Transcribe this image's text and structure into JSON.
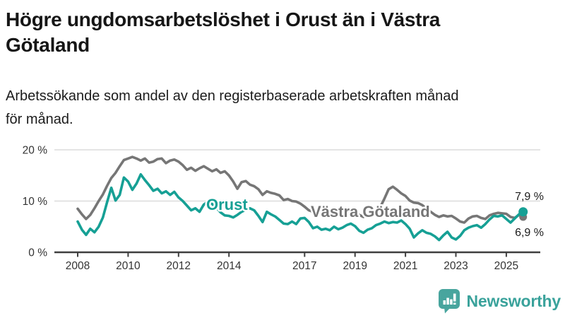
{
  "header": {
    "title_lines": [
      "Högre ungdomsarbetslöshet i Orust än i Västra",
      "Götaland"
    ],
    "subtitle_lines": [
      "Arbetssökande som andel av den registerbaserade arbetskraften månad",
      "för månad."
    ]
  },
  "chart_data": {
    "type": "line",
    "unit": "%",
    "x_start_year": 2008,
    "x_points_per_year": 6,
    "x_axis_tick_years": [
      2008,
      2010,
      2012,
      2014,
      2017,
      2019,
      2021,
      2023,
      2025
    ],
    "x_axis_tick_labels": [
      "2008",
      "2010",
      "2012",
      "2014",
      "2017",
      "2019",
      "2021",
      "2023",
      "2025"
    ],
    "y_axis_ticks": [
      {
        "value": 20,
        "label": "20 %"
      },
      {
        "value": 10,
        "label": "10 %"
      },
      {
        "value": 0,
        "label": "0 %"
      }
    ],
    "y_axis_range": [
      0,
      21
    ],
    "grid": "horizontal-only",
    "legend": "inline-labels",
    "series": [
      {
        "name": "Västra Götaland",
        "color": "#767676",
        "end_value": 6.9,
        "end_label": "6,9 %",
        "values": [
          8.5,
          7.4,
          6.5,
          7.3,
          8.6,
          10.0,
          11.3,
          13.0,
          14.5,
          15.5,
          16.8,
          18.0,
          18.3,
          18.6,
          18.3,
          17.9,
          18.3,
          17.5,
          17.7,
          18.2,
          18.3,
          17.4,
          17.9,
          18.1,
          17.7,
          17.0,
          16.1,
          16.5,
          15.9,
          16.4,
          16.8,
          16.3,
          15.8,
          16.2,
          15.5,
          15.8,
          15.0,
          13.8,
          12.4,
          13.7,
          13.9,
          13.2,
          12.9,
          12.3,
          11.2,
          11.9,
          11.6,
          11.4,
          11.1,
          10.2,
          10.4,
          10.0,
          9.9,
          9.5,
          8.9,
          8.2,
          7.9,
          8.3,
          8.0,
          7.8,
          7.6,
          7.9,
          7.5,
          7.3,
          7.6,
          7.4,
          7.1,
          7.3,
          6.9,
          7.4,
          7.7,
          8.2,
          8.8,
          10.5,
          12.3,
          12.8,
          12.2,
          11.5,
          11.0,
          10.1,
          9.7,
          9.6,
          9.2,
          8.6,
          7.9,
          7.3,
          6.9,
          7.2,
          7.0,
          7.1,
          6.6,
          6.0,
          5.8,
          6.6,
          7.0,
          7.1,
          6.7,
          6.5,
          7.2,
          7.5,
          7.7,
          7.6,
          7.5,
          6.9,
          6.7,
          7.3,
          6.9
        ]
      },
      {
        "name": "Orust",
        "color": "#16a095",
        "end_value": 7.9,
        "end_label": "7,9 %",
        "values": [
          6.0,
          4.4,
          3.4,
          4.6,
          3.9,
          5.0,
          6.8,
          9.8,
          12.6,
          10.1,
          11.2,
          14.6,
          13.8,
          12.2,
          13.4,
          15.2,
          14.1,
          13.1,
          12.0,
          12.4,
          11.5,
          11.9,
          11.2,
          11.8,
          10.7,
          10.0,
          9.1,
          8.2,
          8.6,
          7.9,
          9.3,
          9.9,
          9.4,
          8.7,
          7.8,
          7.2,
          7.1,
          6.8,
          7.3,
          7.9,
          8.3,
          8.6,
          8.2,
          7.1,
          5.9,
          7.9,
          7.4,
          7.0,
          6.3,
          5.6,
          5.5,
          6.0,
          5.5,
          6.6,
          6.7,
          5.9,
          4.7,
          5.0,
          4.4,
          4.6,
          4.3,
          5.0,
          4.5,
          4.8,
          5.3,
          5.6,
          5.1,
          4.2,
          3.8,
          4.4,
          4.7,
          5.3,
          5.6,
          6.0,
          5.7,
          5.9,
          5.8,
          6.2,
          5.5,
          4.6,
          2.9,
          3.7,
          4.3,
          3.8,
          3.6,
          3.1,
          2.4,
          3.3,
          4.0,
          2.9,
          2.5,
          3.2,
          4.3,
          4.8,
          5.1,
          5.3,
          4.8,
          5.5,
          6.4,
          7.1,
          7.0,
          7.2,
          6.5,
          5.8,
          6.6,
          7.4,
          7.9
        ]
      }
    ]
  },
  "footer": {
    "brand": "Newsworthy",
    "logo_icon": "bar-chart-speech-bubble-icon",
    "brand_color": "#3aa29b",
    "icon_color": "#48a59e"
  }
}
